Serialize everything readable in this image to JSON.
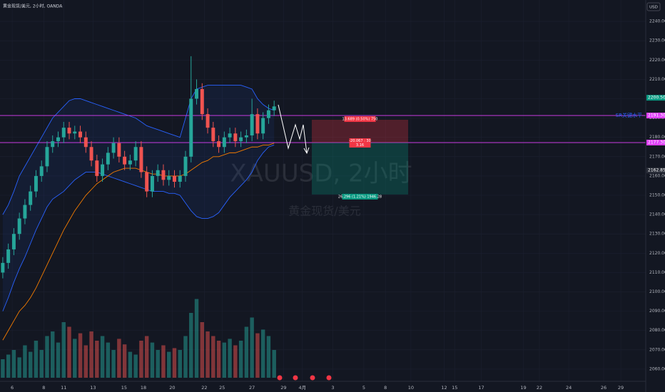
{
  "chart_data": {
    "type": "candlestick",
    "title": "黄金现货/美元, 2小时, OANDA",
    "currency": "USD",
    "watermark": "XAUUSD, 2小时",
    "watermark_subtitle": "黄金现货/美元",
    "xlim": [
      0,
      116.6
    ],
    "ylim": [
      2053.7,
      2251.1
    ],
    "xticks": [
      {
        "value": 2.2,
        "label": "6"
      },
      {
        "value": 7.9,
        "label": "8"
      },
      {
        "value": 11.5,
        "label": "11"
      },
      {
        "value": 16.8,
        "label": "13"
      },
      {
        "value": 22.4,
        "label": "15"
      },
      {
        "value": 25.9,
        "label": "18"
      },
      {
        "value": 31.1,
        "label": "20"
      },
      {
        "value": 36.9,
        "label": "22"
      },
      {
        "value": 40.1,
        "label": "25"
      },
      {
        "value": 45.5,
        "label": "27"
      },
      {
        "value": 51.2,
        "label": "29"
      },
      {
        "value": 54.6,
        "label": "4月"
      },
      {
        "value": 60.1,
        "label": "3"
      },
      {
        "value": 65.7,
        "label": "5"
      },
      {
        "value": 69.6,
        "label": "8"
      },
      {
        "value": 74.2,
        "label": "10"
      },
      {
        "value": 80.2,
        "label": "12"
      },
      {
        "value": 82.1,
        "label": "15"
      },
      {
        "value": 86.9,
        "label": "17"
      },
      {
        "value": 94.5,
        "label": "19"
      },
      {
        "value": 97.4,
        "label": "22"
      },
      {
        "value": 102.7,
        "label": "24"
      },
      {
        "value": 109,
        "label": "26"
      },
      {
        "value": 112.1,
        "label": "29"
      }
    ],
    "yticks": [
      {
        "value": 2060,
        "label": "2060.000"
      },
      {
        "value": 2070,
        "label": "2070.000"
      },
      {
        "value": 2080,
        "label": "2080.000"
      },
      {
        "value": 2090,
        "label": "2090.000"
      },
      {
        "value": 2100,
        "label": "2100.000"
      },
      {
        "value": 2110,
        "label": "2110.000"
      },
      {
        "value": 2120,
        "label": "2120.000"
      },
      {
        "value": 2130,
        "label": "2130.000"
      },
      {
        "value": 2140,
        "label": "2140.000"
      },
      {
        "value": 2150,
        "label": "2150.000"
      },
      {
        "value": 2160,
        "label": "2160.000"
      },
      {
        "value": 2170,
        "label": "2170.000"
      },
      {
        "value": 2180,
        "label": "2180.000"
      },
      {
        "value": 2190,
        "label": "2190.000"
      },
      {
        "value": 2200,
        "label": "2200.000"
      },
      {
        "value": 2210,
        "label": "2210.000"
      },
      {
        "value": 2220,
        "label": "2220.000"
      },
      {
        "value": 2230,
        "label": "2230.000"
      },
      {
        "value": 2240,
        "label": "2240.000"
      }
    ],
    "grid": true,
    "up_color": "#26a69a",
    "down_color": "#ef5350",
    "candles": {
      "open": [
        2110,
        2115,
        2122,
        2130,
        2138,
        2145,
        2152,
        2160,
        2165,
        2175,
        2178,
        2180,
        2185,
        2182,
        2183,
        2180,
        2175,
        2168,
        2160,
        2166,
        2172,
        2177,
        2170,
        2166,
        2168,
        2175,
        2162,
        2152,
        2160,
        2163,
        2158,
        2160,
        2157,
        2160,
        2170,
        2200,
        2205,
        2192,
        2185,
        2178,
        2175,
        2180,
        2182,
        2178,
        2180,
        2181,
        2192,
        2182,
        2190,
        2194
      ],
      "high": [
        2118,
        2125,
        2133,
        2141,
        2148,
        2155,
        2163,
        2168,
        2178,
        2181,
        2183,
        2188,
        2188,
        2186,
        2186,
        2183,
        2178,
        2171,
        2169,
        2175,
        2180,
        2180,
        2173,
        2171,
        2178,
        2178,
        2165,
        2163,
        2166,
        2166,
        2163,
        2163,
        2163,
        2173,
        2222,
        2210,
        2208,
        2195,
        2188,
        2181,
        2183,
        2185,
        2185,
        2183,
        2184,
        2200,
        2195,
        2193,
        2197,
        2199
      ],
      "low": [
        2107,
        2112,
        2119,
        2127,
        2135,
        2142,
        2149,
        2157,
        2162,
        2172,
        2175,
        2177,
        2179,
        2179,
        2177,
        2172,
        2165,
        2157,
        2157,
        2163,
        2169,
        2167,
        2163,
        2163,
        2165,
        2159,
        2149,
        2149,
        2157,
        2155,
        2155,
        2154,
        2154,
        2157,
        2167,
        2197,
        2189,
        2182,
        2175,
        2172,
        2172,
        2177,
        2175,
        2175,
        2177,
        2178,
        2179,
        2179,
        2187,
        2191
      ],
      "close": [
        2115,
        2122,
        2130,
        2138,
        2145,
        2152,
        2160,
        2165,
        2175,
        2178,
        2180,
        2185,
        2182,
        2183,
        2180,
        2175,
        2168,
        2160,
        2166,
        2172,
        2177,
        2170,
        2166,
        2168,
        2175,
        2162,
        2152,
        2160,
        2163,
        2158,
        2160,
        2157,
        2160,
        2170,
        2200,
        2205,
        2192,
        2185,
        2178,
        2175,
        2180,
        2182,
        2178,
        2180,
        2181,
        2192,
        2182,
        2190,
        2194,
        2196
      ]
    },
    "volume": [
      20,
      25,
      30,
      22,
      35,
      28,
      40,
      30,
      45,
      50,
      38,
      60,
      55,
      42,
      48,
      35,
      50,
      40,
      45,
      38,
      30,
      42,
      36,
      28,
      25,
      40,
      45,
      38,
      30,
      35,
      28,
      32,
      30,
      45,
      70,
      85,
      60,
      50,
      45,
      40,
      38,
      42,
      35,
      40,
      55,
      65,
      48,
      52,
      45,
      30
    ],
    "bands": {
      "color": "#2962ff",
      "upper": [
        2140,
        2145,
        2152,
        2160,
        2165,
        2170,
        2175,
        2180,
        2185,
        2190,
        2193,
        2196,
        2199,
        2200,
        2200,
        2199,
        2198,
        2197,
        2196,
        2195,
        2194,
        2193,
        2192,
        2191,
        2190,
        2188,
        2186,
        2185,
        2184,
        2183,
        2182,
        2181,
        2180,
        2190,
        2200,
        2205,
        2206,
        2207,
        2207,
        2207,
        2207,
        2207,
        2207,
        2207,
        2206,
        2205,
        2200,
        2197,
        2195,
        2194
      ],
      "lower": [
        2090,
        2097,
        2105,
        2112,
        2118,
        2125,
        2132,
        2138,
        2144,
        2148,
        2150,
        2152,
        2155,
        2158,
        2160,
        2162,
        2162,
        2162,
        2161,
        2160,
        2159,
        2158,
        2157,
        2156,
        2155,
        2154,
        2153,
        2152,
        2152,
        2152,
        2151,
        2151,
        2150,
        2146,
        2142,
        2139,
        2138,
        2138,
        2139,
        2141,
        2145,
        2149,
        2152,
        2155,
        2158,
        2162,
        2168,
        2172,
        2175,
        2176
      ]
    },
    "ma": {
      "color": "#f57c00",
      "values": [
        2075,
        2080,
        2085,
        2090,
        2093,
        2097,
        2102,
        2108,
        2114,
        2120,
        2126,
        2132,
        2137,
        2142,
        2146,
        2150,
        2153,
        2156,
        2158,
        2160,
        2162,
        2163,
        2164,
        2164,
        2164,
        2163,
        2162,
        2161,
        2161,
        2160,
        2160,
        2160,
        2160,
        2161,
        2163,
        2165,
        2167,
        2168,
        2170,
        2170,
        2171,
        2172,
        2172,
        2173,
        2174,
        2175,
        2175,
        2176,
        2176,
        2177
      ]
    },
    "levels": [
      {
        "value": 2191.3,
        "label": "2191.300",
        "note": "SR关键水平",
        "color": "#e040fb"
      },
      {
        "value": 2177.3,
        "label": "2177.300",
        "color": "#e040fb"
      }
    ],
    "price_tags": [
      {
        "value": 2200.5,
        "label": "2200.500",
        "color": "#089981"
      },
      {
        "value": 2162.85,
        "label": "2162.850",
        "color": "#2a2e39"
      }
    ],
    "position": {
      "x_start": 56.3,
      "x_end": 73.7,
      "stop": 2189.1,
      "entry": 2177.3,
      "target": 2150.4,
      "stop_label": "13.689 (0.50%) 750",
      "entry_label": "-20.067 : 30",
      "entry_sublabel": "3.16",
      "target_label": "26.296 (1.21%) 1946.28"
    }
  }
}
